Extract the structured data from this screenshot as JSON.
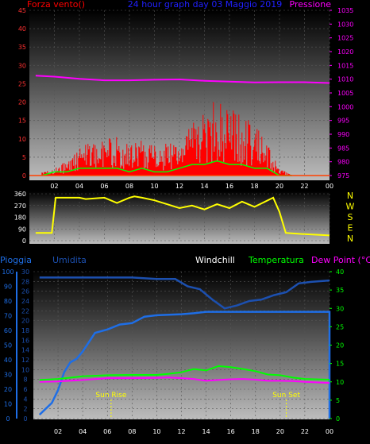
{
  "header": {
    "left_label": "Forza vento()",
    "title": "24 hour graph day  03 Maggio 2019",
    "right_label": "Pressione"
  },
  "bottom_header": {
    "pioggia": "Pioggia",
    "umidita": "Umidita",
    "windchill": "Windchill",
    "temperatura": "Temperatura",
    "dewpoint": "Dew Point (°C)"
  },
  "annotations": {
    "sunrise": "Sun Rise",
    "sunset": "Sun Set"
  },
  "compass": [
    "N",
    "W",
    "S",
    "E",
    "N"
  ],
  "colors": {
    "wind": "#ff0000",
    "wind_avg": "#00ff00",
    "pressure": "#ff00ff",
    "direction": "#ffff00",
    "humidity": "#1c50b0",
    "rain": "#1e6ee6",
    "temperature": "#00ff00",
    "dewpoint": "#ff00ff",
    "windchill": "#ffffff",
    "title": "#2020ff"
  },
  "chart_data": [
    {
      "type": "line",
      "name": "wind-pressure",
      "x_ticks": [
        "02",
        "04",
        "06",
        "08",
        "10",
        "12",
        "14",
        "16",
        "18",
        "20",
        "22",
        "00"
      ],
      "ylim_left": [
        0,
        45
      ],
      "yticks_left": [
        0,
        5,
        10,
        15,
        20,
        25,
        30,
        35,
        40,
        45
      ],
      "ylim_right": [
        975,
        1035
      ],
      "yticks_right": [
        975,
        980,
        985,
        990,
        995,
        1000,
        1005,
        1010,
        1015,
        1020,
        1025,
        1030,
        1035
      ],
      "series": [
        {
          "name": "Pressione",
          "axis": "right",
          "x": [
            0.5,
            2,
            4,
            6,
            8,
            10,
            12,
            14,
            16,
            18,
            20,
            22,
            24
          ],
          "y": [
            1011.3,
            1010.9,
            1010.1,
            1009.6,
            1009.6,
            1009.8,
            1009.9,
            1009.4,
            1009.1,
            1008.8,
            1008.9,
            1008.9,
            1008.6
          ]
        },
        {
          "name": "Forza vento",
          "axis": "left",
          "x": [
            1,
            2,
            3,
            4,
            5,
            6,
            7,
            8,
            9,
            10,
            11,
            12,
            13,
            14,
            15,
            16,
            17,
            18,
            19,
            20,
            21
          ],
          "y": [
            1,
            2,
            4,
            8,
            9,
            10,
            11,
            8,
            10,
            8,
            9,
            10,
            14,
            18,
            21,
            19,
            17,
            14,
            9,
            2,
            0
          ]
        },
        {
          "axis": "left",
          "x": [
            1,
            2,
            3,
            4,
            5,
            6,
            7,
            8,
            9,
            10,
            11,
            12,
            13,
            14,
            15,
            16,
            17,
            18,
            19,
            20,
            21
          ],
          "y": [
            0,
            1,
            1,
            2,
            2,
            2,
            2,
            1,
            2,
            1,
            1,
            2,
            3,
            3,
            4,
            3,
            3,
            2,
            2,
            0,
            0
          ]
        }
      ]
    },
    {
      "type": "line",
      "name": "wind-direction",
      "x_ticks": [
        "02",
        "04",
        "06",
        "08",
        "10",
        "12",
        "14",
        "16",
        "18",
        "20",
        "22",
        "00"
      ],
      "ylim": [
        0,
        360
      ],
      "yticks": [
        0,
        90,
        180,
        270,
        360
      ],
      "series": [
        {
          "name": "direction",
          "x": [
            0.5,
            1.8,
            2.1,
            4.0,
            4.5,
            6.0,
            7.0,
            8.0,
            8.4,
            9.0,
            10.0,
            11.0,
            12.0,
            13.0,
            14.0,
            15.0,
            16.0,
            17.0,
            18.0,
            19.5,
            20.0,
            20.5,
            22.0,
            24.0
          ],
          "y": [
            60,
            60,
            330,
            330,
            320,
            330,
            290,
            330,
            340,
            330,
            310,
            280,
            250,
            270,
            240,
            280,
            250,
            300,
            260,
            330,
            220,
            60,
            50,
            40
          ]
        }
      ]
    },
    {
      "type": "line",
      "name": "temperature-humidity-rain",
      "x_ticks": [
        "02",
        "04",
        "06",
        "08",
        "10",
        "12",
        "14",
        "16",
        "18",
        "20",
        "22",
        "00"
      ],
      "ylim_humidity": [
        0,
        100
      ],
      "yticks_humidity": [
        0,
        10,
        20,
        30,
        40,
        50,
        60,
        70,
        80,
        90,
        100
      ],
      "ylim_rain": [
        0,
        30
      ],
      "yticks_rain": [
        0,
        2,
        4,
        6,
        8,
        10,
        12,
        14,
        16,
        18,
        20,
        22,
        24,
        26,
        28,
        30
      ],
      "ylim_temp": [
        0,
        40
      ],
      "yticks_temp": [
        0,
        5,
        10,
        15,
        20,
        25,
        30,
        35,
        40
      ],
      "sun_rise_hour": 6.3,
      "sun_set_hour": 20.5,
      "series": [
        {
          "name": "Umidita",
          "axis": "humidity",
          "x": [
            0.5,
            2,
            4,
            6,
            8,
            10,
            11.5,
            12.5,
            13.5,
            14.5,
            15.5,
            16.5,
            17.5,
            18.5,
            19.5,
            20.5,
            21.5,
            22.5,
            24
          ],
          "y": [
            96,
            96,
            96,
            96,
            96,
            95,
            95,
            90,
            88,
            81,
            75,
            77,
            80,
            81,
            84,
            86,
            92,
            93,
            94
          ]
        },
        {
          "name": "Pioggia",
          "axis": "rain",
          "x": [
            0.5,
            1.0,
            1.5,
            2.0,
            2.5,
            3.0,
            3.5,
            4.0,
            5.0,
            6.0,
            7.0,
            8.0,
            9.0,
            10.0,
            11.0,
            12.0,
            13.0,
            14.0,
            16.0,
            20.0,
            23.9
          ],
          "y": [
            0.8,
            2.0,
            3.2,
            5.8,
            9.5,
            11.5,
            12.2,
            13.7,
            17.5,
            18.2,
            19.2,
            19.5,
            20.8,
            21.1,
            21.2,
            21.3,
            21.5,
            21.8,
            21.8,
            21.8,
            21.8
          ]
        },
        {
          "name": "Temperatura",
          "axis": "temp",
          "x": [
            0.5,
            2,
            4,
            6,
            8,
            10,
            11,
            12,
            13,
            14,
            15,
            16,
            17,
            18,
            19,
            20,
            21,
            22,
            24
          ],
          "y": [
            10.5,
            10.8,
            11.5,
            11.8,
            11.9,
            11.9,
            12.2,
            12.6,
            13.5,
            13.1,
            14.3,
            14.0,
            13.5,
            12.9,
            12.0,
            11.8,
            11.2,
            10.8,
            10.6
          ]
        },
        {
          "name": "Dew Point",
          "axis": "temp",
          "x": [
            0.5,
            2,
            4,
            6,
            8,
            10,
            11,
            12,
            13,
            14,
            15,
            16,
            17,
            18,
            19,
            20,
            21,
            22,
            24
          ],
          "y": [
            10.0,
            10.1,
            10.5,
            11.0,
            11.0,
            11.1,
            11.2,
            11.0,
            10.8,
            10.3,
            10.5,
            10.7,
            10.8,
            10.6,
            10.3,
            10.3,
            10.2,
            10.0,
            9.7
          ]
        }
      ]
    }
  ]
}
